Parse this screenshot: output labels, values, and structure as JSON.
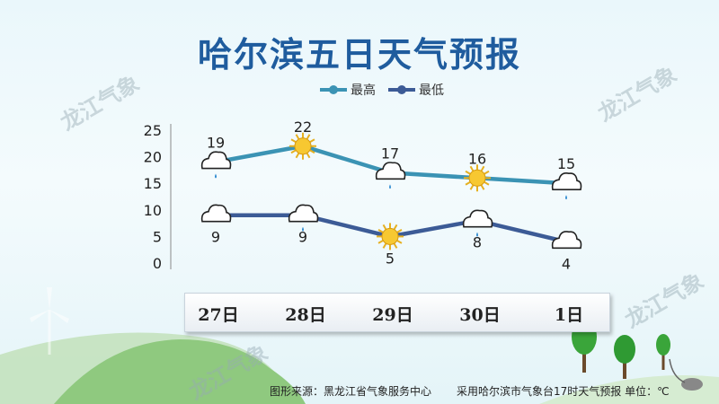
{
  "title": "哈尔滨五日天气预报",
  "watermark_text": "龙江气象",
  "legend": {
    "high_label": "最高",
    "low_label": "最低"
  },
  "footer": {
    "source": "图形来源：黑龙江省气象服务中心",
    "note": "采用哈尔滨市气象台17时天气预报 单位：℃"
  },
  "colors": {
    "high_line": "#3b93b4",
    "low_line": "#3c5b96",
    "title": "#1f5c9e"
  },
  "chart_data": {
    "type": "line",
    "categories": [
      "27日",
      "28日",
      "29日",
      "30日",
      "1日"
    ],
    "yticks": [
      0,
      5,
      10,
      15,
      20,
      25
    ],
    "ylim": [
      0,
      25
    ],
    "series": [
      {
        "name": "最高",
        "values": [
          19,
          22,
          17,
          16,
          15
        ],
        "icons": [
          "cloud-rain-icon",
          "sun-icon",
          "cloud-rain-icon",
          "sun-icon",
          "cloud-rain-icon"
        ]
      },
      {
        "name": "最低",
        "values": [
          9,
          9,
          5,
          8,
          4
        ],
        "icons": [
          "cloud-icon",
          "cloud-rain-icon",
          "sun-icon",
          "cloud-rain-icon",
          "cloud-icon"
        ]
      }
    ]
  }
}
